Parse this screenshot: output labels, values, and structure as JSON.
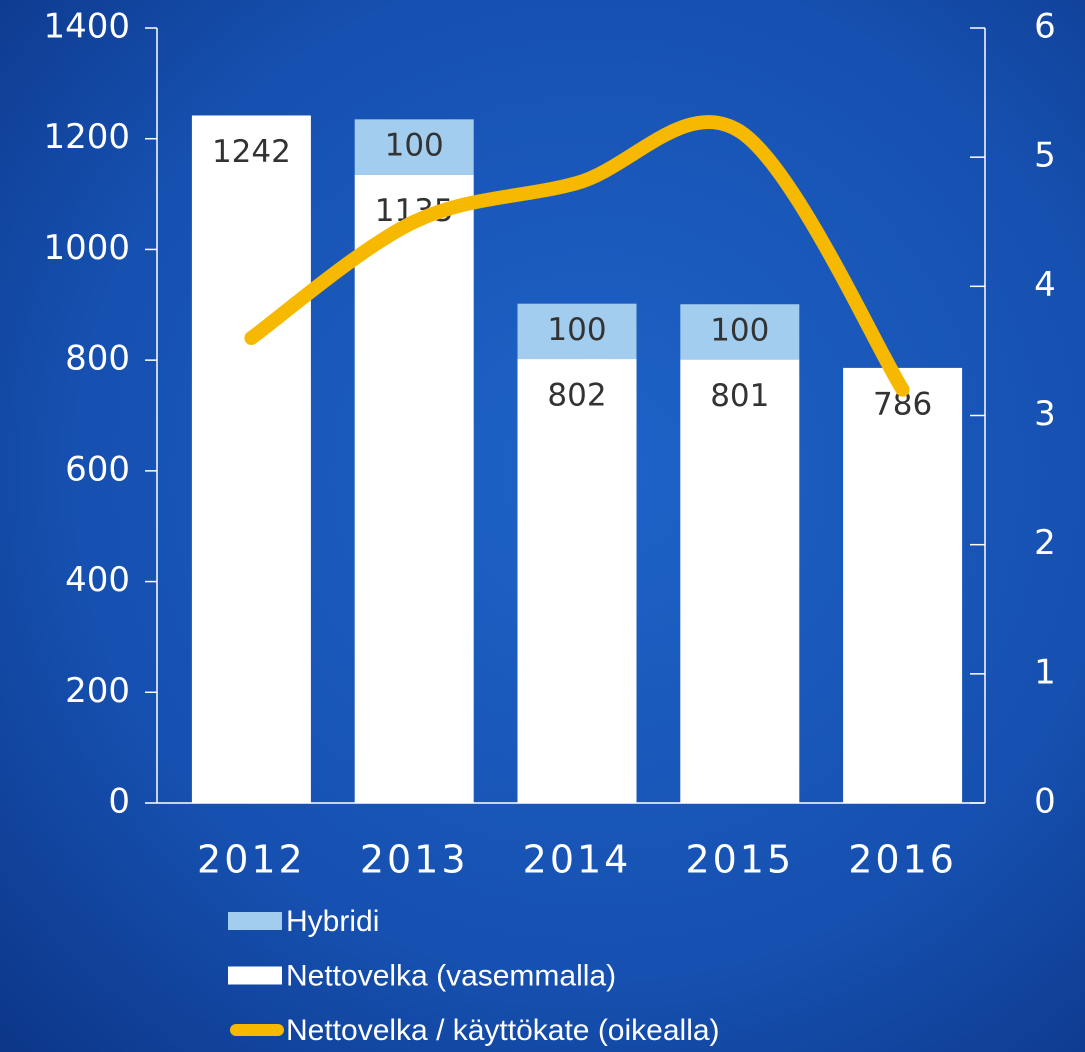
{
  "chart_data": {
    "type": "bar",
    "categories": [
      "2012",
      "2013",
      "2014",
      "2015",
      "2016"
    ],
    "series": [
      {
        "name": "Hybridi",
        "type": "bar",
        "color": "#a3cdee",
        "values": [
          null,
          100,
          100,
          100,
          null
        ]
      },
      {
        "name": "Nettovelka (vasemmalla)",
        "type": "bar",
        "color": "#ffffff",
        "values": [
          1242,
          1135,
          802,
          801,
          786
        ]
      },
      {
        "name": "Nettovelka / käyttökate (oikealla)",
        "type": "line",
        "axis": "y2",
        "color": "#f7b800",
        "values": [
          3.6,
          4.5,
          4.8,
          5.2,
          3.2
        ]
      }
    ],
    "ylim": [
      0,
      1400
    ],
    "yticks": [
      0,
      200,
      400,
      600,
      800,
      1000,
      1200,
      1400
    ],
    "y2lim": [
      0,
      6
    ],
    "y2ticks": [
      0,
      1,
      2,
      3,
      4,
      5,
      6
    ],
    "stacked": true,
    "grid": false
  }
}
